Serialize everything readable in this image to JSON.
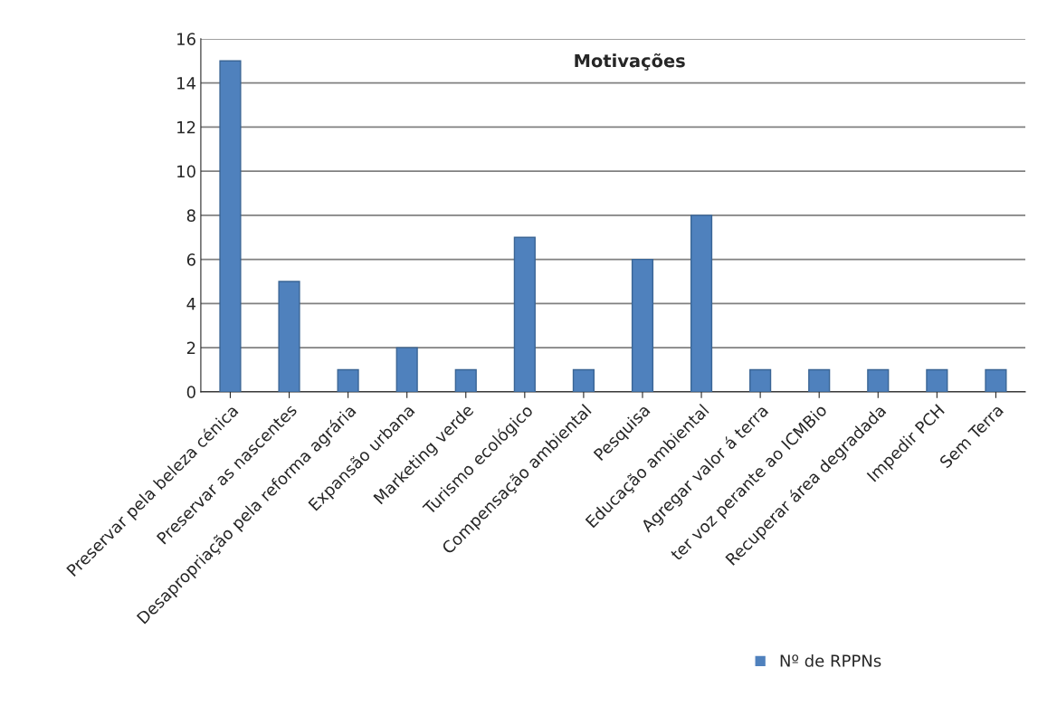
{
  "chart_data": {
    "type": "bar",
    "title": "Motivações",
    "categories": [
      "Preservar pela beleza cénica",
      "Preservar as nascentes",
      "Desapropriação pela reforma agrária",
      "Expansão urbana",
      "Marketing verde",
      "Turismo ecológico",
      "Compensação ambiental",
      "Pesquisa",
      "Educação ambiental",
      "Agregar valor á terra",
      "ter voz perante ao ICMBio",
      "Recuperar área degradada",
      "Impedir PCH",
      "Sem Terra"
    ],
    "series": [
      {
        "name": "Nº de RPPNs",
        "color": "#4f81bd",
        "values": [
          15,
          5,
          1,
          2,
          1,
          7,
          1,
          6,
          8,
          1,
          1,
          1,
          1,
          1
        ]
      }
    ],
    "ylim": [
      0,
      16
    ],
    "yticks": [
      0,
      2,
      4,
      6,
      8,
      10,
      12,
      14,
      16
    ],
    "grid": "y",
    "legend": "bottom right"
  }
}
